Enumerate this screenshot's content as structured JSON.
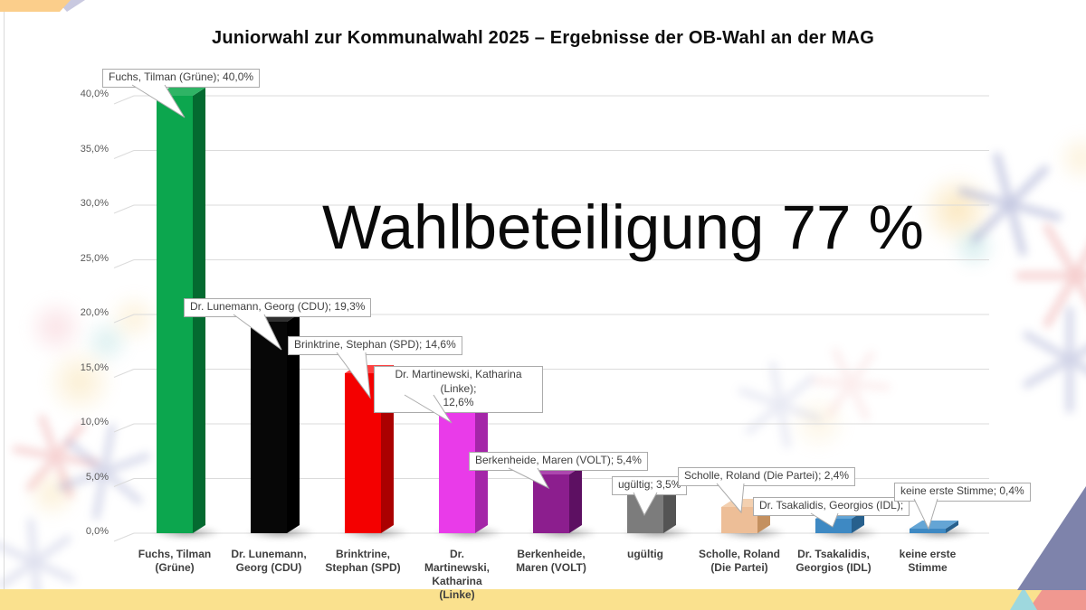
{
  "slide": {
    "title": "Juniorwahl zur Kommunalwahl 2025 – Ergebnisse der OB-Wahl an der MAG",
    "overlay_text": "Wahlbeteiligung 77 %"
  },
  "chart_data": {
    "type": "bar",
    "style": "3d-column",
    "title": "Juniorwahl zur Kommunalwahl 2025 – Ergebnisse der OB-Wahl an der MAG",
    "xlabel": "",
    "ylabel": "",
    "ylim": [
      0,
      40
    ],
    "ytick_interval_percent": 5,
    "ytick_labels": [
      "0,0%",
      "5,0%",
      "10,0%",
      "15,0%",
      "20,0%",
      "25,0%",
      "30,0%",
      "35,0%",
      "40,0%"
    ],
    "grid": true,
    "legend": "none",
    "annotation": "Wahlbeteiligung 77 %",
    "bars": [
      {
        "category": "Fuchs, Tilman (Grüne)",
        "axis_label": "Fuchs, Tilman\n(Grüne)",
        "value": 40.0,
        "data_label": "Fuchs, Tilman (Grüne); 40,0%",
        "color": "#0CA64E",
        "color_side": "#046A30",
        "color_top": "#2FB465"
      },
      {
        "category": "Dr. Lunemann, Georg (CDU)",
        "axis_label": "Dr. Lunemann,\nGeorg (CDU)",
        "value": 19.3,
        "data_label": "Dr. Lunemann, Georg (CDU); 19,3%",
        "color": "#070707",
        "color_side": "#000000",
        "color_top": "#303030"
      },
      {
        "category": "Brinktrine, Stephan (SPD)",
        "axis_label": "Brinktrine,\nStephan (SPD)",
        "value": 14.6,
        "data_label": "Brinktrine, Stephan (SPD); 14,6%",
        "color": "#F40000",
        "color_side": "#AA0000",
        "color_top": "#FF4040"
      },
      {
        "category": "Dr. Martinewski, Katharina (Linke)",
        "axis_label": "Dr.\nMartinewski,\nKatharina\n(Linke)",
        "value": 12.6,
        "data_label": "Dr. Martinewski, Katharina (Linke);\n12,6%",
        "color": "#E93BE9",
        "color_side": "#A426A8",
        "color_top": "#F168F1"
      },
      {
        "category": "Berkenheide, Maren (VOLT)",
        "axis_label": "Berkenheide,\nMaren (VOLT)",
        "value": 5.4,
        "data_label": "Berkenheide, Maren (VOLT); 5,4%",
        "color": "#8C1E8E",
        "color_side": "#5D1062",
        "color_top": "#AC47AE"
      },
      {
        "category": "ugültig",
        "axis_label": "ugültig",
        "value": 3.5,
        "data_label": "ugültig; 3,5%",
        "color": "#7C7C7C",
        "color_side": "#545454",
        "color_top": "#989898"
      },
      {
        "category": "Scholle, Roland (Die Partei)",
        "axis_label": "Scholle, Roland\n(Die Partei)",
        "value": 2.4,
        "data_label": "Scholle, Roland (Die Partei); 2,4%",
        "color": "#EDBE97",
        "color_side": "#C4905F",
        "color_top": "#F3D0B0"
      },
      {
        "category": "Dr. Tsakalidis, Georgios (IDL)",
        "axis_label": "Dr. Tsakalidis,\nGeorgios (IDL)",
        "value": 1.3,
        "value_estimated": true,
        "data_label": "Dr. Tsakalidis, Georgios (IDL);",
        "color": "#3E89C3",
        "color_side": "#27608D",
        "color_top": "#64A5D5"
      },
      {
        "category": "keine erste Stimme",
        "axis_label": "keine erste\nStimme",
        "value": 0.4,
        "data_label": "keine erste Stimme; 0,4%",
        "color": "#3E89C3",
        "color_side": "#27608D",
        "color_top": "#64A5D5"
      }
    ]
  },
  "colors": {
    "grid": "#DBDBDB",
    "tick_text": "#595959",
    "axis_text": "#3F3F3F",
    "callout_border": "#ABABAB",
    "callout_text": "#3F3F3F",
    "top_band": "#FBCE8B",
    "top_lavender": "#C9C9E0",
    "bottom_band": "#FAE18E",
    "corner_slate": "#7E83AB",
    "corner_salmon": "#F09890",
    "corner_cyan": "#9ED8DE",
    "edge_line": "#CCCCCC"
  }
}
